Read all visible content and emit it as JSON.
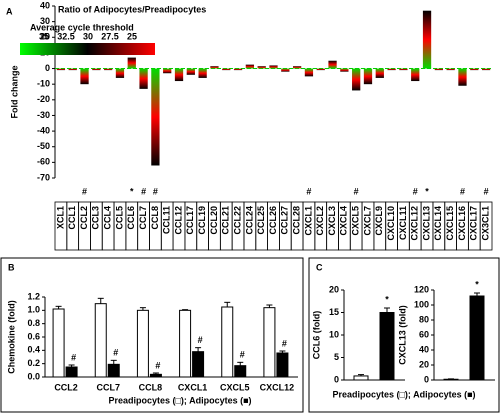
{
  "chart_data": [
    {
      "type": "bar",
      "panel_label": "A",
      "title": "Ratio of Adipocytes/Preadipocytes",
      "ylabel": "Fold change",
      "categories": [
        "XCL1",
        "CCL1",
        "CCL2",
        "CCL3",
        "CCL4",
        "CCL5",
        "CCL6",
        "CCL7",
        "CCL8",
        "CCL11",
        "CCL12",
        "CCL17",
        "CCL19",
        "CCL20",
        "CCL21",
        "CCL22",
        "CCL24",
        "CCL25",
        "CCL26",
        "CCL27",
        "CCL28",
        "CXCL1",
        "CXCL2",
        "CXCL3",
        "CXCL4",
        "CXCL5",
        "CXCL7",
        "CXCL9",
        "CXCL10",
        "CXCL11",
        "CXCL12",
        "CXCL13",
        "CXCL14",
        "CXCL15",
        "CXCL16",
        "CXCL17",
        "CX3CL1"
      ],
      "values": [
        -1,
        -1,
        -10,
        -1,
        -1,
        -6,
        7,
        -13,
        -62,
        -3,
        -8,
        -4,
        -6,
        1.5,
        -1,
        -1,
        2.5,
        1.5,
        2,
        -2,
        1.5,
        -5,
        -1,
        5,
        -2,
        -14,
        -10,
        -6,
        -1,
        -1,
        -8,
        37,
        -1,
        -1,
        -11,
        -1,
        -1
      ],
      "significance": [
        null,
        null,
        "#",
        null,
        null,
        null,
        "*",
        "#",
        "#",
        null,
        null,
        null,
        null,
        null,
        null,
        null,
        null,
        null,
        null,
        null,
        null,
        "#",
        null,
        null,
        null,
        "#",
        null,
        null,
        null,
        null,
        "#",
        "*",
        null,
        null,
        "#",
        null,
        "#"
      ],
      "ylim": [
        -70,
        40
      ],
      "yticks": [
        -70,
        -60,
        -50,
        -40,
        -30,
        -20,
        -10,
        0,
        10,
        20,
        30,
        40
      ],
      "bar_colors": [
        "#00dd00",
        "#ff0000",
        "#000000"
      ],
      "legend": {
        "title": "Average cycle threshold",
        "ticks": [
          35,
          32.5,
          30,
          27.5,
          25
        ],
        "colors": [
          "#00ff00",
          "#000000",
          "#ff0000"
        ]
      }
    },
    {
      "type": "grouped_bar",
      "panel_label": "B",
      "ylabel": "Chemokine (fold)",
      "xlabel": "Preadipocytes (□); Adipocytes (■)",
      "categories": [
        "CCL2",
        "CCL7",
        "CCL8",
        "CXCL1",
        "CXCL5",
        "CXCL12"
      ],
      "series": [
        {
          "color": "#ffffff",
          "values": [
            1.02,
            1.1,
            1.0,
            1.0,
            1.05,
            1.04
          ],
          "errors": [
            0.04,
            0.08,
            0.04,
            0.01,
            0.07,
            0.04
          ]
        },
        {
          "color": "#000000",
          "values": [
            0.15,
            0.19,
            0.04,
            0.38,
            0.17,
            0.36
          ],
          "errors": [
            0.03,
            0.06,
            0.02,
            0.06,
            0.05,
            0.03
          ],
          "significance": [
            "#",
            "#",
            "#",
            "#",
            "#",
            "#"
          ]
        }
      ],
      "ylim": [
        0,
        1.2
      ],
      "yticks": [
        {
          "value": 0,
          "label": "0.0"
        },
        0.2,
        0.4,
        0.6,
        0.8,
        {
          "value": 1,
          "label": "1.0"
        },
        1.2
      ]
    },
    {
      "type": "pair_bar",
      "panel_label": "C",
      "ylabel": "CCL6 (fold)",
      "xlabel": "Preadipocytes (□); Adipocytes (■)",
      "values": [
        0.9,
        15
      ],
      "errors": [
        0.3,
        1
      ],
      "colors": [
        "#ffffff",
        "#000000"
      ],
      "significance": [
        null,
        "*"
      ],
      "ylim": [
        0,
        20
      ],
      "yticks": [
        0,
        5,
        10,
        15,
        20
      ]
    },
    {
      "type": "pair_bar",
      "ylabel": "CXCL13 (fold)",
      "values": [
        1,
        112
      ],
      "errors": [
        0.5,
        4
      ],
      "colors": [
        "#ffffff",
        "#000000"
      ],
      "significance": [
        null,
        "*"
      ],
      "ylim": [
        0,
        120
      ],
      "yticks": [
        0,
        20,
        40,
        60,
        80,
        100,
        120
      ]
    }
  ]
}
